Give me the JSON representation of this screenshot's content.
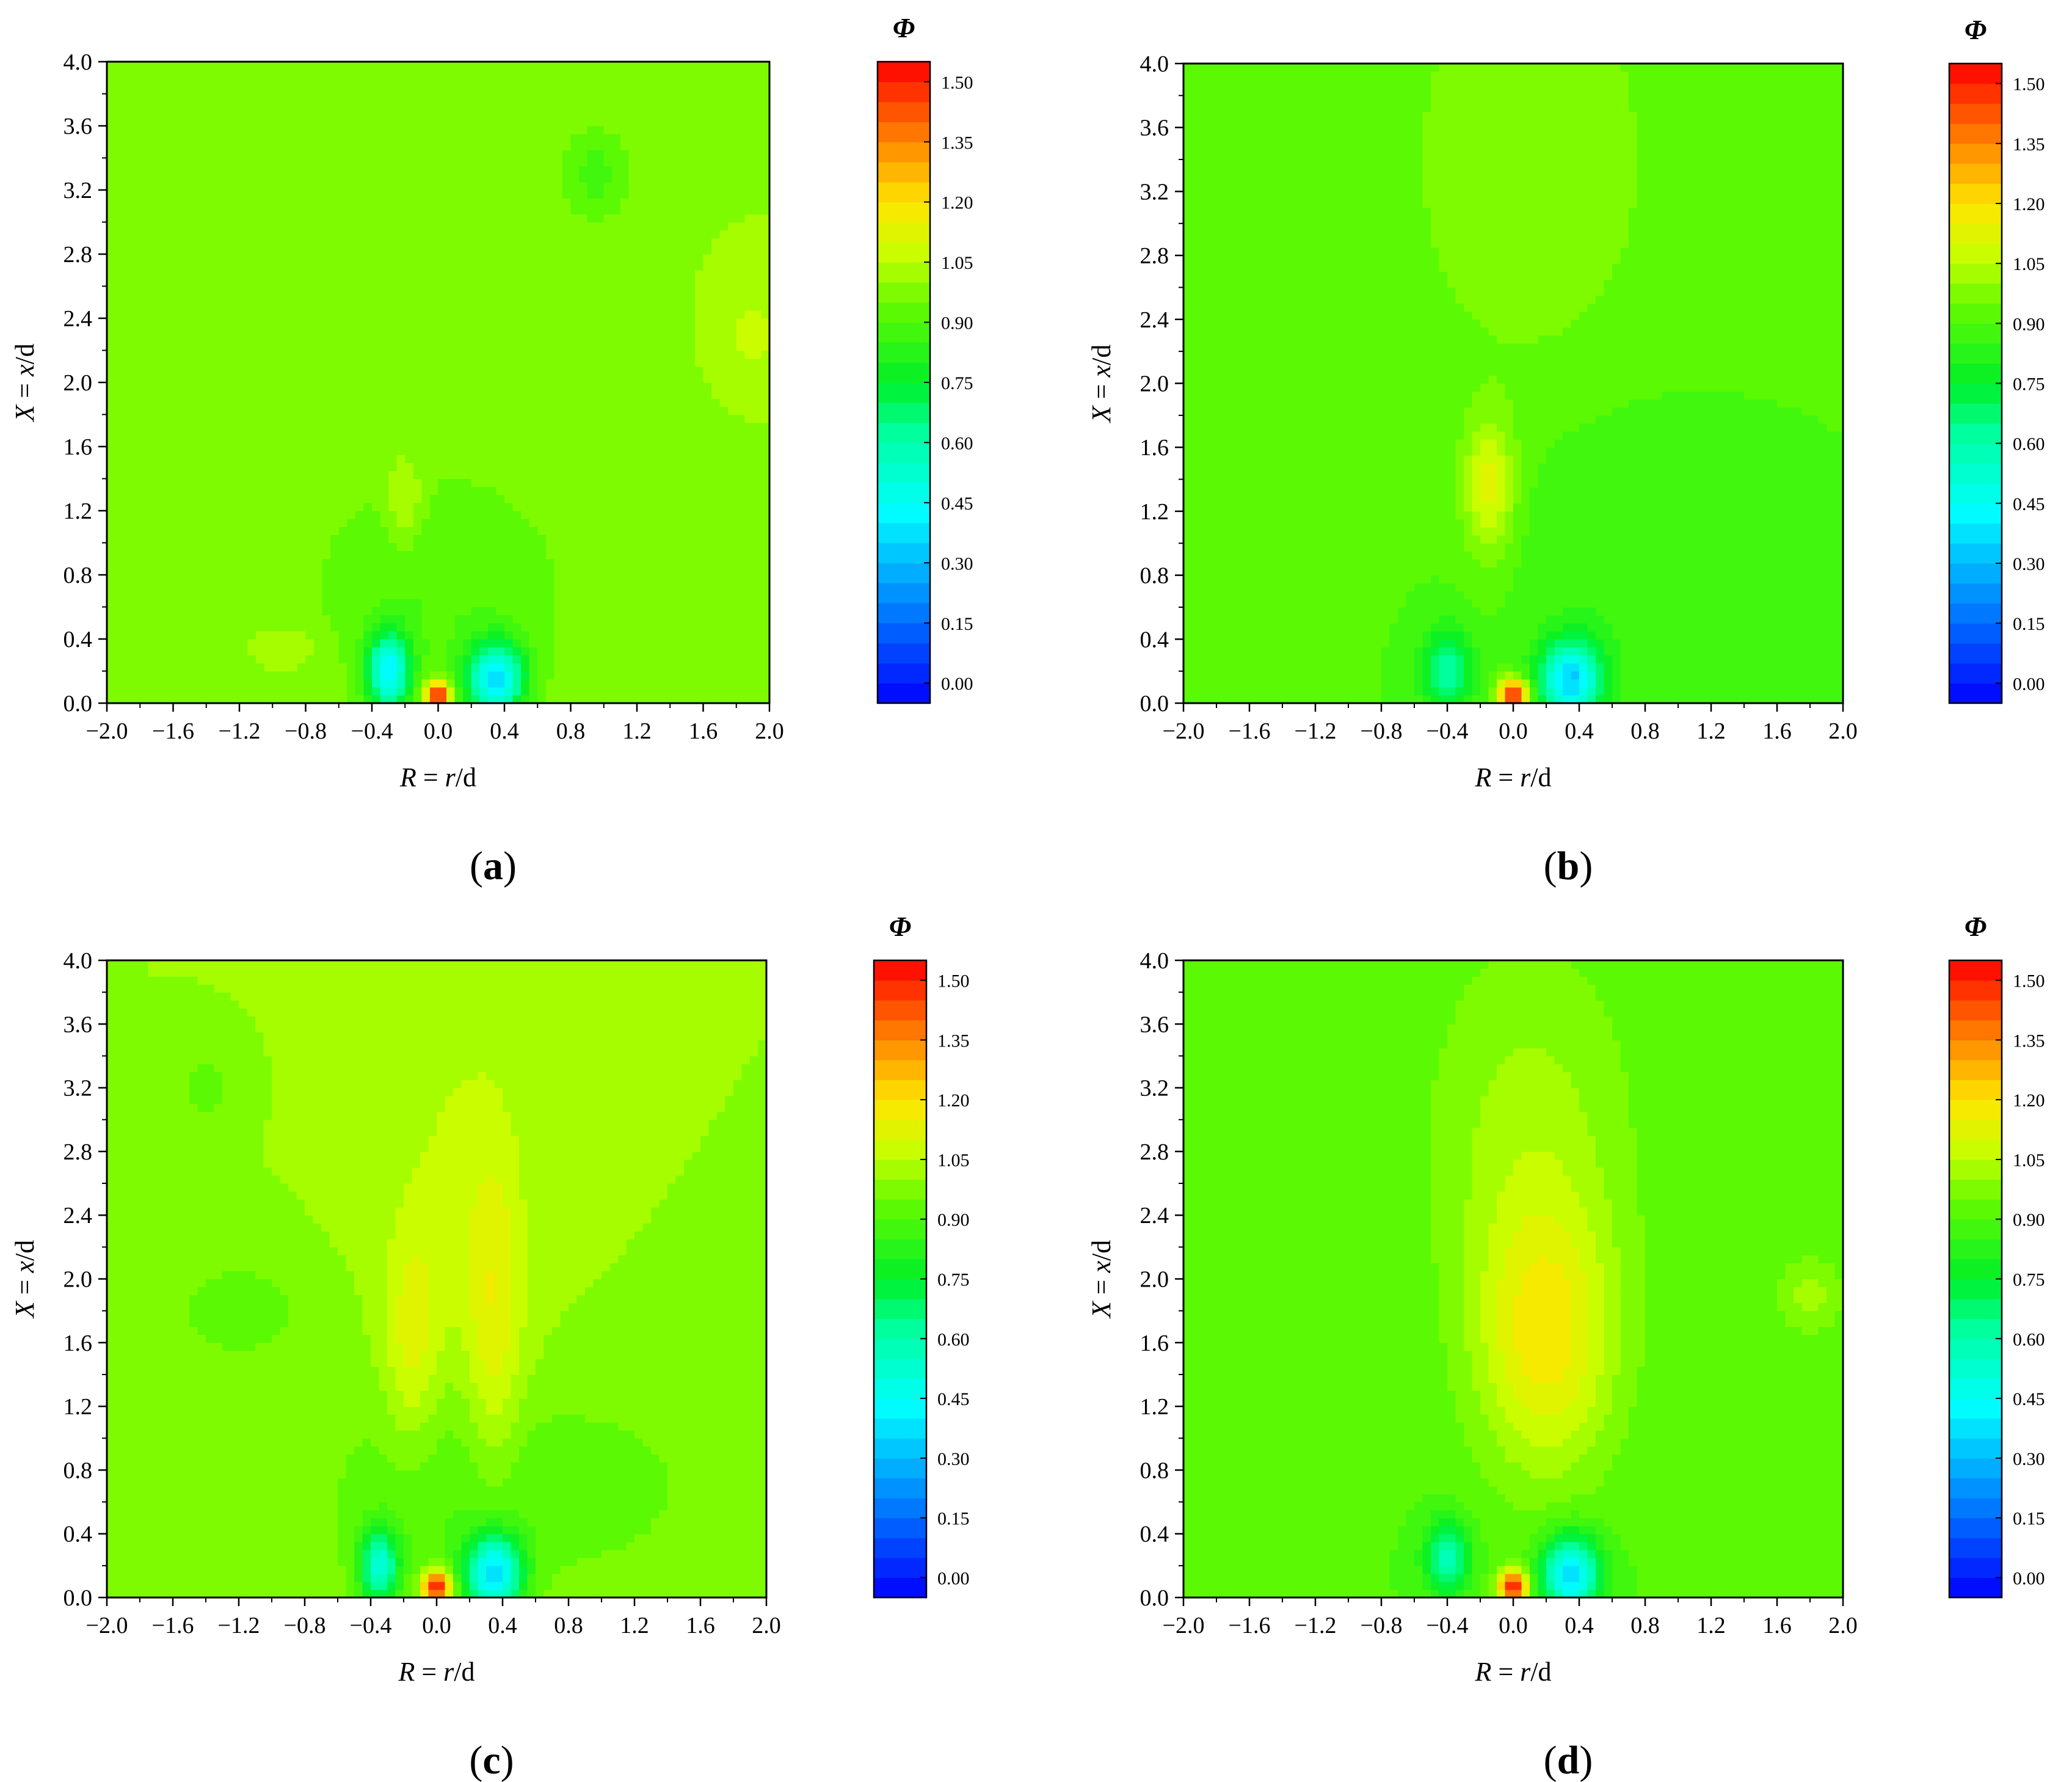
{
  "chart_data": [
    {
      "type": "heatmap",
      "panel_label": "(a)",
      "xlabel_var": "R",
      "xlabel_rest": " = ",
      "xlabel_num": "r",
      "xlabel_den": "/d",
      "ylabel_var": "X",
      "ylabel_rest": " = ",
      "ylabel_num": "x",
      "ylabel_den": "/d",
      "xlim": [
        -2.0,
        2.0
      ],
      "ylim": [
        0.0,
        4.0
      ],
      "x_ticks": [
        "−2.0",
        "−1.6",
        "−1.2",
        "−0.8",
        "−0.4",
        "0.0",
        "0.4",
        "0.8",
        "1.2",
        "1.6",
        "2.0"
      ],
      "y_ticks": [
        "0.0",
        "0.4",
        "0.8",
        "1.2",
        "1.6",
        "2.0",
        "2.4",
        "2.8",
        "3.2",
        "3.6",
        "4.0"
      ],
      "colorbar_title": "Φ",
      "colorbar_ticks": [
        "0.00",
        "0.15",
        "0.30",
        "0.45",
        "0.60",
        "0.75",
        "0.90",
        "1.05",
        "1.20",
        "1.35",
        "1.50"
      ],
      "colorbar_range": [
        -0.05,
        1.55
      ],
      "background": 1.0,
      "features": [
        {
          "x": 0.0,
          "y": 0.05,
          "sx": 0.05,
          "sy": 0.06,
          "a": 0.6
        },
        {
          "x": -0.3,
          "y": 0.2,
          "sx": 0.09,
          "sy": 0.17,
          "a": -0.55
        },
        {
          "x": 0.35,
          "y": 0.15,
          "sx": 0.12,
          "sy": 0.16,
          "a": -0.6
        },
        {
          "x": -0.2,
          "y": 1.25,
          "sx": 0.08,
          "sy": 0.2,
          "a": 0.1
        },
        {
          "x": -0.9,
          "y": 0.35,
          "sx": 0.14,
          "sy": 0.1,
          "a": 0.06
        },
        {
          "x": 0.95,
          "y": 3.3,
          "sx": 0.15,
          "sy": 0.22,
          "a": -0.12
        },
        {
          "x": 1.9,
          "y": 2.3,
          "sx": 0.1,
          "sy": 0.15,
          "a": 0.08
        },
        {
          "x": 0.0,
          "y": 0.7,
          "sx": 0.6,
          "sy": 0.6,
          "a": -0.1
        }
      ]
    },
    {
      "type": "heatmap",
      "panel_label": "(b)",
      "xlabel_var": "R",
      "xlabel_rest": " = ",
      "xlabel_num": "r",
      "xlabel_den": "/d",
      "ylabel_var": "X",
      "ylabel_rest": " = ",
      "ylabel_num": "x",
      "ylabel_den": "/d",
      "xlim": [
        -2.0,
        2.0
      ],
      "ylim": [
        0.0,
        4.0
      ],
      "x_ticks": [
        "−2.0",
        "−1.6",
        "−1.2",
        "−0.8",
        "−0.4",
        "0.0",
        "0.4",
        "0.8",
        "1.2",
        "1.6",
        "2.0"
      ],
      "y_ticks": [
        "0.0",
        "0.4",
        "0.8",
        "1.2",
        "1.6",
        "2.0",
        "2.4",
        "2.8",
        "3.2",
        "3.6",
        "4.0"
      ],
      "colorbar_title": "Φ",
      "colorbar_ticks": [
        "0.00",
        "0.15",
        "0.30",
        "0.45",
        "0.60",
        "0.75",
        "0.90",
        "1.05",
        "1.20",
        "1.35",
        "1.50"
      ],
      "colorbar_range": [
        -0.05,
        1.55
      ],
      "background": 0.9,
      "features": [
        {
          "x": 0.1,
          "y": 3.4,
          "sx": 0.55,
          "sy": 1.0,
          "a": 0.1
        },
        {
          "x": -0.15,
          "y": 1.35,
          "sx": 0.11,
          "sy": 0.3,
          "a": 0.22
        },
        {
          "x": 0.0,
          "y": 0.05,
          "sx": 0.06,
          "sy": 0.07,
          "a": 0.65
        },
        {
          "x": -0.4,
          "y": 0.2,
          "sx": 0.1,
          "sy": 0.18,
          "a": -0.3
        },
        {
          "x": 0.35,
          "y": 0.15,
          "sx": 0.13,
          "sy": 0.17,
          "a": -0.55
        },
        {
          "x": 0.6,
          "y": 1.0,
          "sx": 0.4,
          "sy": 0.6,
          "a": -0.05
        }
      ]
    },
    {
      "type": "heatmap",
      "panel_label": "(c)",
      "xlabel_var": "R",
      "xlabel_rest": " = ",
      "xlabel_num": "r",
      "xlabel_den": "/d",
      "ylabel_var": "X",
      "ylabel_rest": " = ",
      "ylabel_num": "x",
      "ylabel_den": "/d",
      "xlim": [
        -2.0,
        2.0
      ],
      "ylim": [
        0.0,
        4.0
      ],
      "x_ticks": [
        "−2.0",
        "−1.6",
        "−1.2",
        "−0.8",
        "−0.4",
        "0.0",
        "0.4",
        "0.8",
        "1.2",
        "1.6",
        "2.0"
      ],
      "y_ticks": [
        "0.0",
        "0.4",
        "0.8",
        "1.2",
        "1.6",
        "2.0",
        "2.4",
        "2.8",
        "3.2",
        "3.6",
        "4.0"
      ],
      "colorbar_title": "Φ",
      "colorbar_ticks": [
        "0.00",
        "0.15",
        "0.30",
        "0.45",
        "0.60",
        "0.75",
        "0.90",
        "1.05",
        "1.20",
        "1.35",
        "1.50"
      ],
      "colorbar_range": [
        -0.05,
        1.55
      ],
      "background": 1.0,
      "features": [
        {
          "x": -0.15,
          "y": 1.6,
          "sx": 0.12,
          "sy": 0.5,
          "a": 0.13
        },
        {
          "x": 0.35,
          "y": 1.7,
          "sx": 0.12,
          "sy": 0.7,
          "a": 0.13
        },
        {
          "x": 0.15,
          "y": 2.6,
          "sx": 0.3,
          "sy": 0.9,
          "a": 0.06
        },
        {
          "x": 0.0,
          "y": 0.07,
          "sx": 0.06,
          "sy": 0.07,
          "a": 0.6
        },
        {
          "x": -0.35,
          "y": 0.2,
          "sx": 0.08,
          "sy": 0.16,
          "a": -0.45
        },
        {
          "x": 0.35,
          "y": 0.15,
          "sx": 0.12,
          "sy": 0.17,
          "a": -0.6
        },
        {
          "x": -1.4,
          "y": 3.2,
          "sx": 0.1,
          "sy": 0.12,
          "a": -0.1
        },
        {
          "x": -1.2,
          "y": 1.8,
          "sx": 0.25,
          "sy": 0.2,
          "a": -0.1
        },
        {
          "x": 0.0,
          "y": 0.6,
          "sx": 0.5,
          "sy": 0.6,
          "a": -0.1
        },
        {
          "x": 1.0,
          "y": 0.7,
          "sx": 0.4,
          "sy": 0.35,
          "a": -0.08
        }
      ]
    },
    {
      "type": "heatmap",
      "panel_label": "(d)",
      "xlabel_var": "R",
      "xlabel_rest": " = ",
      "xlabel_num": "r",
      "xlabel_den": "/d",
      "ylabel_var": "X",
      "ylabel_rest": " = ",
      "ylabel_num": "x",
      "ylabel_den": "/d",
      "xlim": [
        -2.0,
        2.0
      ],
      "ylim": [
        0.0,
        4.0
      ],
      "x_ticks": [
        "−2.0",
        "−1.6",
        "−1.2",
        "−0.8",
        "−0.4",
        "0.0",
        "0.4",
        "0.8",
        "1.2",
        "1.6",
        "2.0"
      ],
      "y_ticks": [
        "0.0",
        "0.4",
        "0.8",
        "1.2",
        "1.6",
        "2.0",
        "2.4",
        "2.8",
        "3.2",
        "3.6",
        "4.0"
      ],
      "colorbar_title": "Φ",
      "colorbar_ticks": [
        "0.00",
        "0.15",
        "0.30",
        "0.45",
        "0.60",
        "0.75",
        "0.90",
        "1.05",
        "1.20",
        "1.35",
        "1.50"
      ],
      "colorbar_range": [
        -0.05,
        1.55
      ],
      "background": 0.9,
      "features": [
        {
          "x": 0.2,
          "y": 1.6,
          "sx": 0.3,
          "sy": 0.6,
          "a": 0.25
        },
        {
          "x": 0.1,
          "y": 2.9,
          "sx": 0.45,
          "sy": 0.9,
          "a": 0.12
        },
        {
          "x": 0.0,
          "y": 0.07,
          "sx": 0.06,
          "sy": 0.07,
          "a": 0.65
        },
        {
          "x": -0.4,
          "y": 0.25,
          "sx": 0.09,
          "sy": 0.16,
          "a": -0.35
        },
        {
          "x": 0.35,
          "y": 0.15,
          "sx": 0.12,
          "sy": 0.17,
          "a": -0.55
        },
        {
          "x": 1.8,
          "y": 1.9,
          "sx": 0.14,
          "sy": 0.18,
          "a": 0.12
        }
      ]
    }
  ]
}
